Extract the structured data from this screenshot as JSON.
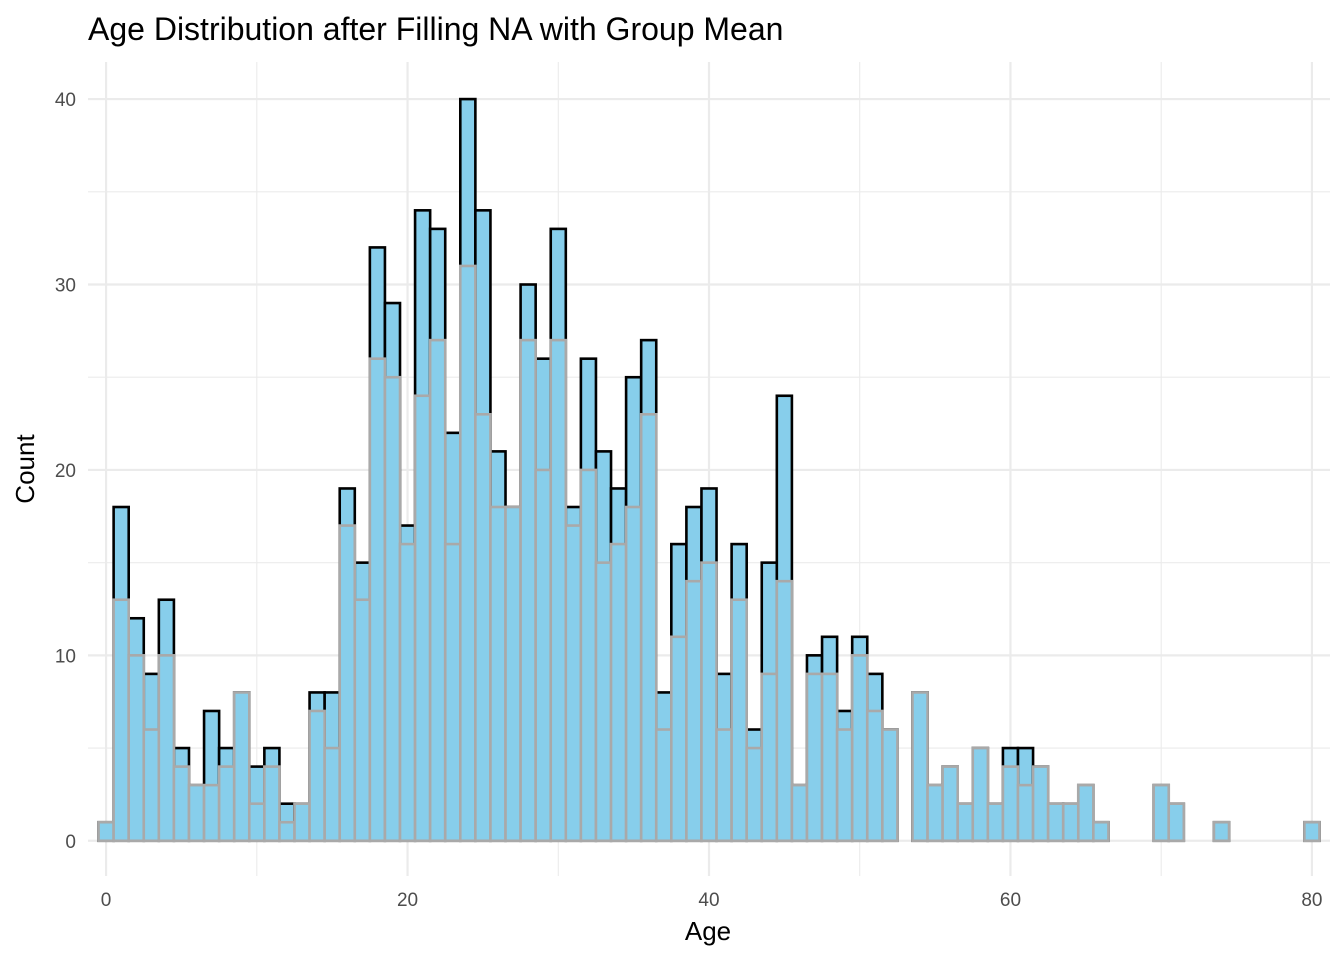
{
  "chart_data": {
    "type": "bar",
    "title": "Age Distribution after Filling NA with Group Mean",
    "xlabel": "Age",
    "ylabel": "Count",
    "xlim": [
      -1.2,
      81.2
    ],
    "ylim": [
      -1.9,
      42.0
    ],
    "x_ticks": [
      "0",
      "20",
      "40",
      "60",
      "80"
    ],
    "x_tick_values": [
      0,
      20,
      40,
      60,
      80
    ],
    "y_ticks": [
      "0",
      "10",
      "20",
      "30",
      "40"
    ],
    "y_tick_values": [
      0,
      10,
      20,
      30,
      40
    ],
    "bin_width": 1,
    "grid": true,
    "legend": "none",
    "colors": {
      "fill": "#87ceeb",
      "outline_after": "#000000",
      "outline_before": "#a9a9a9"
    },
    "series": [
      {
        "values": [
          1,
          18,
          12,
          9,
          13,
          5,
          3,
          7,
          5,
          8,
          4,
          5,
          2,
          2,
          8,
          8,
          19,
          15,
          32,
          29,
          17,
          34,
          33,
          22,
          40,
          34,
          21,
          18,
          30,
          26,
          33,
          18,
          26,
          21,
          19,
          25,
          27,
          8,
          16,
          18,
          19,
          9,
          16,
          6,
          15,
          24,
          3,
          10,
          11,
          7,
          11,
          9,
          6,
          0,
          8,
          3,
          4,
          2,
          5,
          2,
          5,
          5,
          4,
          2,
          2,
          3,
          1,
          0,
          0,
          0,
          3,
          2,
          0,
          0,
          1,
          0,
          0,
          0,
          0,
          0,
          1
        ]
      },
      {
        "values": [
          1,
          13,
          10,
          6,
          10,
          4,
          3,
          3,
          4,
          8,
          2,
          4,
          1,
          2,
          7,
          5,
          17,
          13,
          26,
          25,
          16,
          24,
          27,
          16,
          31,
          23,
          18,
          18,
          27,
          20,
          27,
          17,
          20,
          15,
          16,
          18,
          23,
          6,
          11,
          14,
          15,
          6,
          13,
          5,
          9,
          14,
          3,
          9,
          9,
          6,
          10,
          7,
          6,
          0,
          8,
          3,
          4,
          2,
          5,
          2,
          4,
          3,
          4,
          2,
          2,
          3,
          1,
          0,
          0,
          0,
          3,
          2,
          0,
          0,
          1,
          0,
          0,
          0,
          0,
          0,
          1
        ]
      }
    ]
  }
}
